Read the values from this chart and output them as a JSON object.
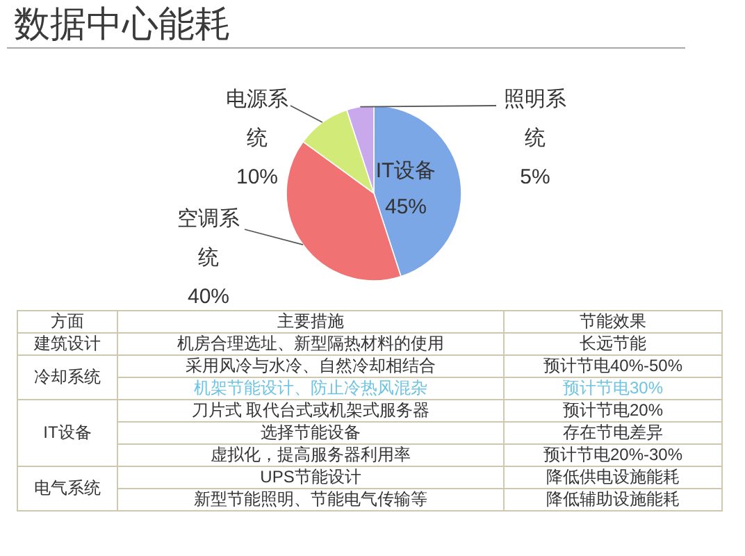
{
  "chart_data": [
    {
      "type": "pie",
      "title": "数据中心能耗",
      "categories": [
        "IT设备",
        "空调系统",
        "电源系统",
        "照明系统"
      ],
      "values": [
        45,
        40,
        10,
        5
      ],
      "value_labels": [
        "45%",
        "40%",
        "10%",
        "5%"
      ],
      "colors": [
        "#7ba7e6",
        "#f07272",
        "#d2ea78",
        "#c9a9ec"
      ]
    },
    {
      "type": "other",
      "annotations": [
        "方面",
        "主要措施",
        "节能效果",
        "建筑设计",
        "机房合理选址、新型隔热材料的使用",
        "长远节能",
        "冷却系统",
        "采用风冷与水冷、自然冷却相结合",
        "预计节电40%-50%",
        "机架节能设计、防止冷热风混杂",
        "预计节电30%",
        "IT设备",
        "刀片式 取代台式或机架式服务器",
        "预计节电20%",
        "选择节能设备",
        "存在节电差异",
        "虚拟化，提高服务器利用率",
        "预计节电20%-30%",
        "电气系统",
        "UPS节能设计",
        "降低供电设施能耗",
        "新型节能照明、节能电气传输等",
        "降低辅助设施能耗"
      ]
    }
  ]
}
